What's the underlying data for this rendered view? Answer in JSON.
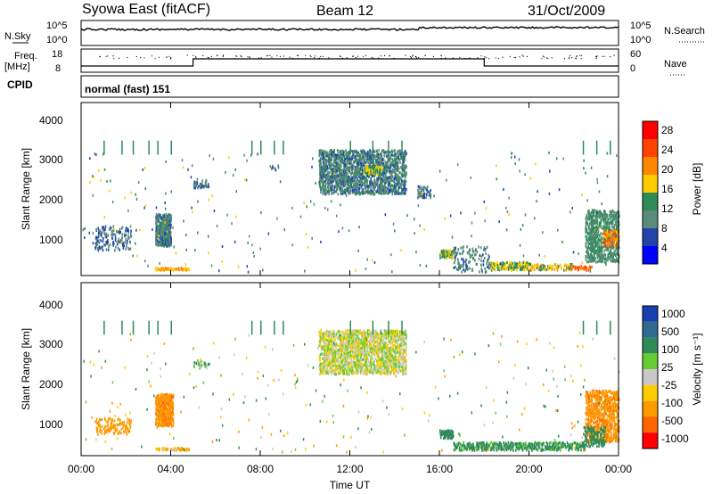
{
  "header": {
    "station": "Syowa East (fitACF)",
    "beam": "Beam 12",
    "date": "31/Oct/2009"
  },
  "top_panels": {
    "nsky_label": "N.Sky",
    "nsky_ticks": [
      "10^5",
      "10^0"
    ],
    "nsearch_label": "N.Search",
    "nsearch_ticks": [
      "10^5",
      "10^0"
    ],
    "freq_label": "Freq.",
    "freq_unit": "[MHz]",
    "freq_ticks": [
      "18",
      "8"
    ],
    "nave_label": "Nave",
    "nave_ticks": [
      "60",
      "0"
    ],
    "cpid_label": "CPID",
    "cpid_text": "normal (fast) 151"
  },
  "axes": {
    "ylabel": "Slant Range [km]",
    "yticks": [
      "4000",
      "3000",
      "2000",
      "1000"
    ],
    "xticks": [
      "00:00",
      "04:00",
      "08:00",
      "12:00",
      "16:00",
      "20:00",
      "00:00"
    ],
    "xlabel": "Time UT"
  },
  "power_scale": {
    "label": "Power [dB]",
    "ticks": [
      "28",
      "24",
      "20",
      "16",
      "12",
      "8",
      "4"
    ],
    "colors": [
      "#ff0000",
      "#ff4400",
      "#ff8800",
      "#ffcc00",
      "#2e8b57",
      "#5a8a7a",
      "#2244aa",
      "#0000ff"
    ]
  },
  "velocity_scale": {
    "label": "Velocity [m s⁻¹]",
    "ticks": [
      "1000",
      "500",
      "100",
      "25",
      "-25",
      "-100",
      "-500",
      "-1000"
    ],
    "colors": [
      "#1a3fb0",
      "#2e6b8e",
      "#2e8b57",
      "#66cc33",
      "#c8c8c8",
      "#ffcc00",
      "#ff9900",
      "#ff6600",
      "#ff0000"
    ]
  },
  "chart_data": [
    {
      "type": "heatmap",
      "title": "Power",
      "xlabel": "Time UT",
      "ylabel": "Slant Range [km]",
      "xlim": [
        0,
        24
      ],
      "ylim": [
        180,
        4500
      ],
      "blobs": [
        {
          "t": [
            0.6,
            2.2
          ],
          "r": [
            800,
            1400
          ],
          "v": 6,
          "d": 0.25
        },
        {
          "t": [
            3.3,
            4.0
          ],
          "r": [
            900,
            1700
          ],
          "v": 8,
          "d": 0.8
        },
        {
          "t": [
            3.3,
            4.8
          ],
          "r": [
            300,
            360
          ],
          "v": 18,
          "d": 0.7
        },
        {
          "t": [
            5.0,
            5.7
          ],
          "r": [
            2350,
            2550
          ],
          "v": 6,
          "d": 0.4
        },
        {
          "t": [
            8.4,
            8.8
          ],
          "r": [
            2800,
            2900
          ],
          "v": 8,
          "d": 0.5
        },
        {
          "t": [
            10.6,
            14.5
          ],
          "r": [
            2200,
            3300
          ],
          "v": 8,
          "d": 0.6
        },
        {
          "t": [
            12.6,
            13.4
          ],
          "r": [
            2700,
            2900
          ],
          "v": 14,
          "d": 0.8
        },
        {
          "t": [
            15.0,
            15.6
          ],
          "r": [
            2100,
            2400
          ],
          "v": 6,
          "d": 0.4
        },
        {
          "t": [
            16.0,
            16.6
          ],
          "r": [
            600,
            800
          ],
          "v": 14,
          "d": 0.9
        },
        {
          "t": [
            16.6,
            18.2
          ],
          "r": [
            250,
            900
          ],
          "v": 8,
          "d": 0.2
        },
        {
          "t": [
            18.2,
            20.0
          ],
          "r": [
            300,
            500
          ],
          "v": 14,
          "d": 0.7
        },
        {
          "t": [
            20.0,
            22.0
          ],
          "r": [
            300,
            450
          ],
          "v": 16,
          "d": 0.6
        },
        {
          "t": [
            21.8,
            22.8
          ],
          "r": [
            300,
            400
          ],
          "v": 22,
          "d": 0.6
        },
        {
          "t": [
            22.5,
            24.0
          ],
          "r": [
            500,
            1800
          ],
          "v": 10,
          "d": 0.55
        },
        {
          "t": [
            23.3,
            24.0
          ],
          "r": [
            900,
            1300
          ],
          "v": 20,
          "d": 0.5
        }
      ],
      "columns": [
        1.0,
        1.8,
        2.3,
        3.0,
        3.4,
        4.0,
        7.6,
        8.0,
        8.6,
        9.0,
        12.0,
        13.0,
        13.7,
        14.3,
        22.4,
        23.0,
        23.6
      ]
    },
    {
      "type": "heatmap",
      "title": "Velocity",
      "xlabel": "Time UT",
      "ylabel": "Slant Range [km]",
      "xlim": [
        0,
        24
      ],
      "ylim": [
        180,
        4500
      ],
      "blobs": [
        {
          "t": [
            0.6,
            2.2
          ],
          "r": [
            700,
            1100
          ],
          "v": -300,
          "d": 0.3
        },
        {
          "t": [
            3.3,
            4.1
          ],
          "r": [
            900,
            1700
          ],
          "v": -450,
          "d": 0.85
        },
        {
          "t": [
            3.3,
            4.8
          ],
          "r": [
            300,
            360
          ],
          "v": -80,
          "d": 0.7
        },
        {
          "t": [
            5.0,
            5.7
          ],
          "r": [
            2350,
            2550
          ],
          "v": 60,
          "d": 0.4
        },
        {
          "t": [
            10.6,
            14.5
          ],
          "r": [
            2200,
            3300
          ],
          "v": 0,
          "d": 0.6
        },
        {
          "t": [
            16.0,
            16.6
          ],
          "r": [
            600,
            800
          ],
          "v": 200,
          "d": 0.9
        },
        {
          "t": [
            16.6,
            22.5
          ],
          "r": [
            300,
            500
          ],
          "v": 150,
          "d": 0.6
        },
        {
          "t": [
            22.5,
            24.0
          ],
          "r": [
            500,
            1800
          ],
          "v": -450,
          "d": 0.55
        },
        {
          "t": [
            22.4,
            23.4
          ],
          "r": [
            400,
            900
          ],
          "v": 300,
          "d": 0.4
        }
      ],
      "columns": [
        1.0,
        1.8,
        2.3,
        3.0,
        3.4,
        4.0,
        7.6,
        8.0,
        8.6,
        9.0,
        12.0,
        13.0,
        13.7,
        14.3,
        22.4,
        23.0,
        23.6
      ]
    }
  ]
}
